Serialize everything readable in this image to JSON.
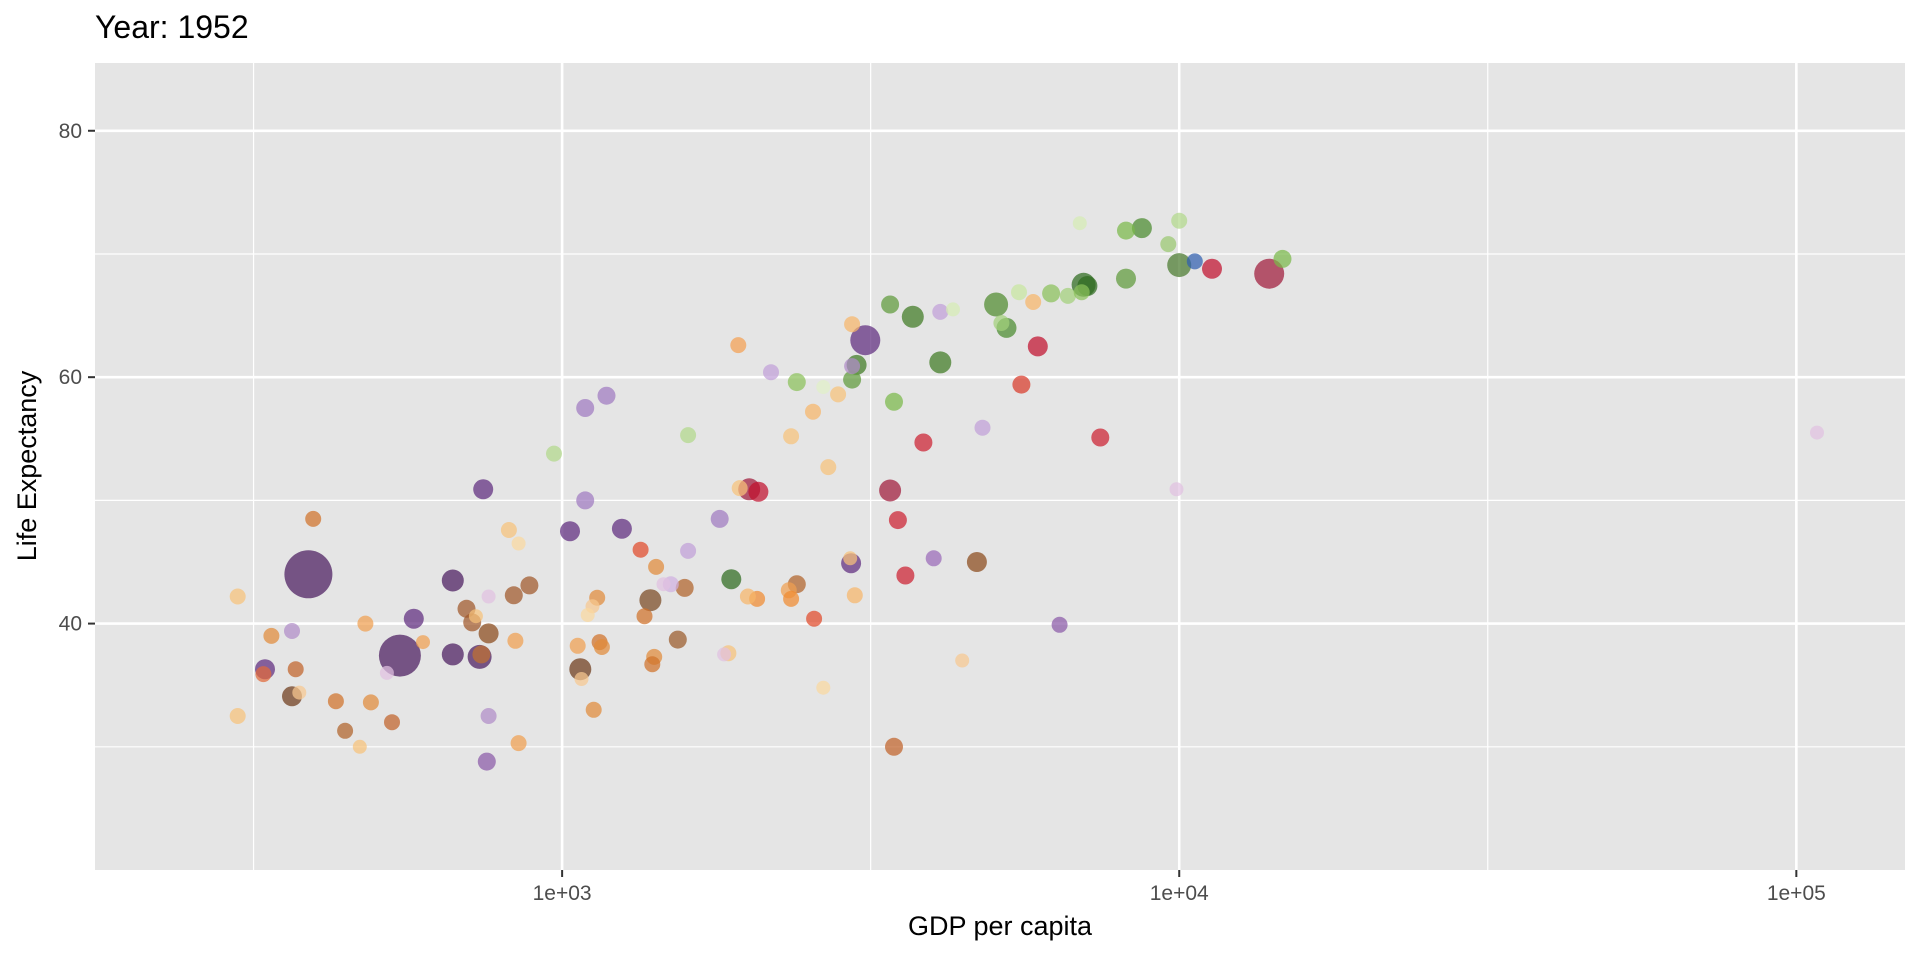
{
  "chart_data": {
    "type": "scatter",
    "title": "Year: 1952",
    "xlabel": "GDP per capita",
    "ylabel": "Life Expectancy",
    "x_scale": "log10",
    "xlim": [
      175,
      150000
    ],
    "ylim": [
      20,
      85.5
    ],
    "x_ticks": [
      {
        "value": 1000,
        "label": "1e+03"
      },
      {
        "value": 10000,
        "label": "1e+04"
      },
      {
        "value": 100000,
        "label": "1e+05"
      }
    ],
    "x_minor_ticks": [
      316.2,
      3162,
      31620
    ],
    "y_ticks": [
      {
        "value": 40,
        "label": "40"
      },
      {
        "value": 60,
        "label": "60"
      },
      {
        "value": 80,
        "label": "80"
      }
    ],
    "y_minor_ticks": [
      30,
      50,
      70
    ],
    "grid": true,
    "legend": "none",
    "background": "#e5e5e5",
    "grid_color": "#ffffff",
    "points": [
      {
        "x": 388,
        "y": 44.0,
        "size": 48,
        "color": "#4a1a5e"
      },
      {
        "x": 546,
        "y": 37.4,
        "size": 42,
        "color": "#4a1a5e"
      },
      {
        "x": 3100,
        "y": 63.0,
        "size": 30,
        "color": "#5e2b7e"
      },
      {
        "x": 13990,
        "y": 68.4,
        "size": 30,
        "color": "#a01a3a"
      },
      {
        "x": 5050,
        "y": 65.9,
        "size": 24,
        "color": "#4f8a2e"
      },
      {
        "x": 7000,
        "y": 67.5,
        "size": 24,
        "color": "#2e6b1e"
      },
      {
        "x": 10000,
        "y": 69.1,
        "size": 24,
        "color": "#4a7a2e"
      },
      {
        "x": 2010,
        "y": 50.9,
        "size": 22,
        "color": "#a01a3a"
      },
      {
        "x": 3400,
        "y": 50.8,
        "size": 22,
        "color": "#a01a3a"
      },
      {
        "x": 4100,
        "y": 61.2,
        "size": 22,
        "color": "#3f7a22"
      },
      {
        "x": 3700,
        "y": 64.9,
        "size": 22,
        "color": "#3f7a22"
      },
      {
        "x": 1070,
        "y": 36.3,
        "size": 22,
        "color": "#6e3a1a"
      },
      {
        "x": 1390,
        "y": 41.9,
        "size": 22,
        "color": "#7a4a22"
      },
      {
        "x": 665,
        "y": 43.5,
        "size": 22,
        "color": "#4a1a5e"
      },
      {
        "x": 735,
        "y": 37.3,
        "size": 24,
        "color": "#4a1a5e"
      },
      {
        "x": 665,
        "y": 37.5,
        "size": 22,
        "color": "#4a1a5e"
      },
      {
        "x": 575,
        "y": 40.4,
        "size": 20,
        "color": "#5e2b7e"
      },
      {
        "x": 1030,
        "y": 47.5,
        "size": 20,
        "color": "#5e2b7e"
      },
      {
        "x": 1250,
        "y": 47.7,
        "size": 20,
        "color": "#5e2b7e"
      },
      {
        "x": 745,
        "y": 50.9,
        "size": 20,
        "color": "#5e2b7e"
      },
      {
        "x": 330,
        "y": 36.3,
        "size": 20,
        "color": "#5e2b7e"
      },
      {
        "x": 2940,
        "y": 44.9,
        "size": 20,
        "color": "#5e2b7e"
      },
      {
        "x": 1880,
        "y": 43.6,
        "size": 20,
        "color": "#2e6b1e"
      },
      {
        "x": 3000,
        "y": 61.0,
        "size": 20,
        "color": "#3f7a22"
      },
      {
        "x": 7100,
        "y": 67.4,
        "size": 20,
        "color": "#2e6b1e"
      },
      {
        "x": 8700,
        "y": 72.1,
        "size": 20,
        "color": "#4a8a2e"
      },
      {
        "x": 5250,
        "y": 64.0,
        "size": 20,
        "color": "#4a8a2e"
      },
      {
        "x": 2080,
        "y": 50.7,
        "size": 20,
        "color": "#c0102e"
      },
      {
        "x": 5900,
        "y": 62.5,
        "size": 20,
        "color": "#c0102e"
      },
      {
        "x": 11300,
        "y": 68.8,
        "size": 20,
        "color": "#c0102e"
      },
      {
        "x": 7450,
        "y": 55.1,
        "size": 18,
        "color": "#cc2030"
      },
      {
        "x": 3850,
        "y": 54.7,
        "size": 18,
        "color": "#cc2030"
      },
      {
        "x": 3500,
        "y": 48.4,
        "size": 18,
        "color": "#cc2030"
      },
      {
        "x": 3600,
        "y": 43.9,
        "size": 18,
        "color": "#cc2030"
      },
      {
        "x": 5550,
        "y": 59.4,
        "size": 18,
        "color": "#d83a2a"
      },
      {
        "x": 2560,
        "y": 40.4,
        "size": 16,
        "color": "#e04a2a"
      },
      {
        "x": 1340,
        "y": 46.0,
        "size": 16,
        "color": "#e04a2a"
      },
      {
        "x": 10600,
        "y": 69.4,
        "size": 16,
        "color": "#3060b0"
      },
      {
        "x": 14700,
        "y": 69.6,
        "size": 18,
        "color": "#7ab84a"
      },
      {
        "x": 8200,
        "y": 68.0,
        "size": 20,
        "color": "#5e9a3a"
      },
      {
        "x": 8200,
        "y": 71.9,
        "size": 18,
        "color": "#7ab84a"
      },
      {
        "x": 9600,
        "y": 70.8,
        "size": 16,
        "color": "#9ac870"
      },
      {
        "x": 10000,
        "y": 72.7,
        "size": 16,
        "color": "#b2d88a"
      },
      {
        "x": 6900,
        "y": 72.5,
        "size": 14,
        "color": "#d6ecb4"
      },
      {
        "x": 6200,
        "y": 66.8,
        "size": 18,
        "color": "#8ac05a"
      },
      {
        "x": 6600,
        "y": 66.6,
        "size": 16,
        "color": "#a2d07a"
      },
      {
        "x": 6950,
        "y": 66.9,
        "size": 16,
        "color": "#8ac05a"
      },
      {
        "x": 5500,
        "y": 66.9,
        "size": 16,
        "color": "#c8e6a0"
      },
      {
        "x": 5150,
        "y": 64.4,
        "size": 16,
        "color": "#a2d07a"
      },
      {
        "x": 3400,
        "y": 65.9,
        "size": 18,
        "color": "#5e9a3a"
      },
      {
        "x": 3450,
        "y": 58.0,
        "size": 18,
        "color": "#7ab84a"
      },
      {
        "x": 2950,
        "y": 59.8,
        "size": 18,
        "color": "#5e9a3a"
      },
      {
        "x": 2400,
        "y": 59.6,
        "size": 18,
        "color": "#8ac05a"
      },
      {
        "x": 4300,
        "y": 65.5,
        "size": 14,
        "color": "#d6ecb4"
      },
      {
        "x": 2650,
        "y": 59.2,
        "size": 14,
        "color": "#e0f0c8"
      },
      {
        "x": 1600,
        "y": 55.3,
        "size": 16,
        "color": "#b2d88a"
      },
      {
        "x": 970,
        "y": 53.8,
        "size": 16,
        "color": "#b2d88a"
      },
      {
        "x": 5800,
        "y": 66.1,
        "size": 16,
        "color": "#f7b56a"
      },
      {
        "x": 2950,
        "y": 64.3,
        "size": 16,
        "color": "#f7b56a"
      },
      {
        "x": 2800,
        "y": 58.6,
        "size": 16,
        "color": "#f7c27a"
      },
      {
        "x": 2550,
        "y": 57.2,
        "size": 16,
        "color": "#f7b56a"
      },
      {
        "x": 2350,
        "y": 55.2,
        "size": 16,
        "color": "#f7c27a"
      },
      {
        "x": 2700,
        "y": 52.7,
        "size": 16,
        "color": "#f7c27a"
      },
      {
        "x": 1930,
        "y": 62.6,
        "size": 16,
        "color": "#f4a052"
      },
      {
        "x": 1940,
        "y": 51.0,
        "size": 16,
        "color": "#f7c27a"
      },
      {
        "x": 2980,
        "y": 42.3,
        "size": 16,
        "color": "#f7b56a"
      },
      {
        "x": 2330,
        "y": 42.7,
        "size": 16,
        "color": "#f0a050"
      },
      {
        "x": 2350,
        "y": 42.0,
        "size": 16,
        "color": "#f08a30"
      },
      {
        "x": 2070,
        "y": 42.0,
        "size": 16,
        "color": "#f08a30"
      },
      {
        "x": 2000,
        "y": 42.2,
        "size": 16,
        "color": "#f7b56a"
      },
      {
        "x": 2400,
        "y": 43.2,
        "size": 18,
        "color": "#b0622a"
      },
      {
        "x": 2930,
        "y": 45.3,
        "size": 14,
        "color": "#f7c27a"
      },
      {
        "x": 4700,
        "y": 45.0,
        "size": 20,
        "color": "#8a4a1a"
      },
      {
        "x": 3450,
        "y": 30.0,
        "size": 18,
        "color": "#c0622a"
      },
      {
        "x": 4450,
        "y": 37.0,
        "size": 14,
        "color": "#f7c890"
      },
      {
        "x": 2650,
        "y": 34.8,
        "size": 14,
        "color": "#fad8a0"
      },
      {
        "x": 1860,
        "y": 37.6,
        "size": 16,
        "color": "#f7c27a"
      },
      {
        "x": 1540,
        "y": 38.7,
        "size": 18,
        "color": "#9a5a2a"
      },
      {
        "x": 1580,
        "y": 42.9,
        "size": 18,
        "color": "#b0622a"
      },
      {
        "x": 1420,
        "y": 44.6,
        "size": 16,
        "color": "#e08a3a"
      },
      {
        "x": 1360,
        "y": 40.6,
        "size": 16,
        "color": "#d0722a"
      },
      {
        "x": 1410,
        "y": 37.3,
        "size": 16,
        "color": "#e08a3a"
      },
      {
        "x": 1400,
        "y": 36.7,
        "size": 16,
        "color": "#d0722a"
      },
      {
        "x": 1150,
        "y": 38.5,
        "size": 16,
        "color": "#d0722a"
      },
      {
        "x": 1160,
        "y": 38.1,
        "size": 16,
        "color": "#e08a3a"
      },
      {
        "x": 1140,
        "y": 42.1,
        "size": 16,
        "color": "#e08a3a"
      },
      {
        "x": 1120,
        "y": 41.4,
        "size": 14,
        "color": "#f7c890"
      },
      {
        "x": 1100,
        "y": 40.7,
        "size": 14,
        "color": "#fad8a0"
      },
      {
        "x": 1060,
        "y": 38.2,
        "size": 16,
        "color": "#f0a050"
      },
      {
        "x": 1075,
        "y": 35.5,
        "size": 14,
        "color": "#f7c890"
      },
      {
        "x": 1125,
        "y": 33.0,
        "size": 16,
        "color": "#e08a3a"
      },
      {
        "x": 850,
        "y": 30.3,
        "size": 16,
        "color": "#f0a050"
      },
      {
        "x": 835,
        "y": 42.3,
        "size": 18,
        "color": "#a0582a"
      },
      {
        "x": 885,
        "y": 43.1,
        "size": 18,
        "color": "#a0582a"
      },
      {
        "x": 820,
        "y": 47.6,
        "size": 16,
        "color": "#f7c27a"
      },
      {
        "x": 850,
        "y": 46.5,
        "size": 14,
        "color": "#fad8a0"
      },
      {
        "x": 840,
        "y": 38.6,
        "size": 16,
        "color": "#f0a050"
      },
      {
        "x": 700,
        "y": 41.2,
        "size": 18,
        "color": "#a0582a"
      },
      {
        "x": 715,
        "y": 40.1,
        "size": 18,
        "color": "#a0582a"
      },
      {
        "x": 725,
        "y": 40.6,
        "size": 14,
        "color": "#f7c27a"
      },
      {
        "x": 760,
        "y": 39.2,
        "size": 20,
        "color": "#8a4a1a"
      },
      {
        "x": 740,
        "y": 37.5,
        "size": 18,
        "color": "#c07030"
      },
      {
        "x": 760,
        "y": 42.2,
        "size": 14,
        "color": "#e0c0e0"
      },
      {
        "x": 760,
        "y": 32.5,
        "size": 16,
        "color": "#b08cc8"
      },
      {
        "x": 755,
        "y": 28.8,
        "size": 18,
        "color": "#8a5aa8"
      },
      {
        "x": 595,
        "y": 38.5,
        "size": 14,
        "color": "#f0a050"
      },
      {
        "x": 530,
        "y": 32.0,
        "size": 16,
        "color": "#c0622a"
      },
      {
        "x": 520,
        "y": 36.0,
        "size": 14,
        "color": "#e0c0e0"
      },
      {
        "x": 490,
        "y": 33.6,
        "size": 16,
        "color": "#e08a3a"
      },
      {
        "x": 470,
        "y": 30.0,
        "size": 14,
        "color": "#f7c27a"
      },
      {
        "x": 480,
        "y": 40.0,
        "size": 16,
        "color": "#f0a050"
      },
      {
        "x": 430,
        "y": 33.7,
        "size": 16,
        "color": "#d0722a"
      },
      {
        "x": 445,
        "y": 31.3,
        "size": 16,
        "color": "#b0622a"
      },
      {
        "x": 395,
        "y": 48.5,
        "size": 16,
        "color": "#d0722a"
      },
      {
        "x": 365,
        "y": 39.4,
        "size": 16,
        "color": "#b08cc8"
      },
      {
        "x": 375,
        "y": 34.4,
        "size": 14,
        "color": "#f7c890"
      },
      {
        "x": 365,
        "y": 34.1,
        "size": 20,
        "color": "#6e3a1a"
      },
      {
        "x": 370,
        "y": 36.3,
        "size": 16,
        "color": "#c0622a"
      },
      {
        "x": 338,
        "y": 39.0,
        "size": 16,
        "color": "#e08a3a"
      },
      {
        "x": 328,
        "y": 35.9,
        "size": 16,
        "color": "#e06a3a"
      },
      {
        "x": 298,
        "y": 42.2,
        "size": 16,
        "color": "#f7c27a"
      },
      {
        "x": 298,
        "y": 32.5,
        "size": 16,
        "color": "#f7c27a"
      },
      {
        "x": 1090,
        "y": 57.5,
        "size": 18,
        "color": "#a07ac0"
      },
      {
        "x": 1180,
        "y": 58.5,
        "size": 18,
        "color": "#a07ac0"
      },
      {
        "x": 1090,
        "y": 50.0,
        "size": 18,
        "color": "#a07ac0"
      },
      {
        "x": 1600,
        "y": 45.9,
        "size": 16,
        "color": "#c0a0d8"
      },
      {
        "x": 1500,
        "y": 43.2,
        "size": 16,
        "color": "#d0b0e0"
      },
      {
        "x": 1460,
        "y": 43.2,
        "size": 14,
        "color": "#e0c0e0"
      },
      {
        "x": 1800,
        "y": 48.5,
        "size": 18,
        "color": "#a07ac0"
      },
      {
        "x": 1830,
        "y": 37.5,
        "size": 14,
        "color": "#e0c0e0"
      },
      {
        "x": 2180,
        "y": 60.4,
        "size": 16,
        "color": "#c0a0d8"
      },
      {
        "x": 2950,
        "y": 60.9,
        "size": 16,
        "color": "#b08cc8"
      },
      {
        "x": 4100,
        "y": 65.3,
        "size": 16,
        "color": "#c0a0d8"
      },
      {
        "x": 4000,
        "y": 45.3,
        "size": 16,
        "color": "#9a6ab8"
      },
      {
        "x": 4800,
        "y": 55.9,
        "size": 16,
        "color": "#c0a0d8"
      },
      {
        "x": 6400,
        "y": 39.9,
        "size": 16,
        "color": "#8a5aa8"
      },
      {
        "x": 9900,
        "y": 50.9,
        "size": 14,
        "color": "#e0c0e0"
      },
      {
        "x": 108000,
        "y": 55.5,
        "size": 14,
        "color": "#e0c0e0"
      }
    ]
  }
}
